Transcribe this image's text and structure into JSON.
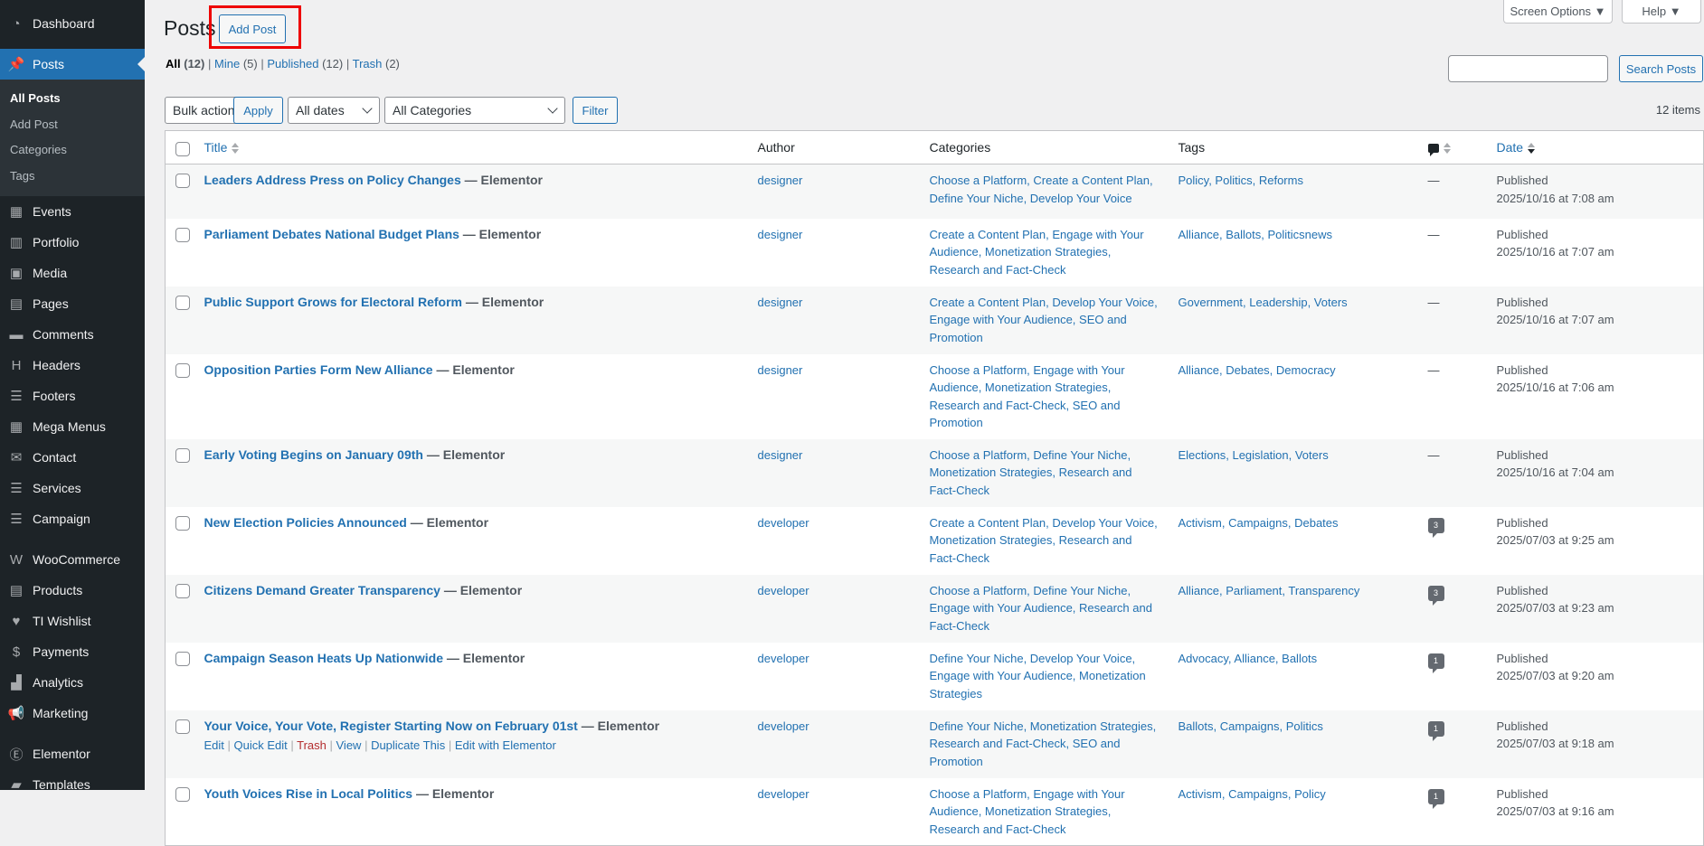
{
  "sidebar": {
    "items": [
      {
        "label": "Dashboard",
        "icon": "dashboard-icon",
        "glyph": "◔"
      },
      {
        "label": "Posts",
        "icon": "pushpin-icon",
        "glyph": "📌",
        "current": true
      },
      {
        "label": "Events",
        "icon": "calendar-icon",
        "glyph": "▦"
      },
      {
        "label": "Portfolio",
        "icon": "portfolio-icon",
        "glyph": "▥"
      },
      {
        "label": "Media",
        "icon": "media-icon",
        "glyph": "▣"
      },
      {
        "label": "Pages",
        "icon": "pages-icon",
        "glyph": "▤"
      },
      {
        "label": "Comments",
        "icon": "comments-icon",
        "glyph": "▬"
      },
      {
        "label": "Headers",
        "icon": "headers-icon",
        "glyph": "H"
      },
      {
        "label": "Footers",
        "icon": "footers-icon",
        "glyph": "☰"
      },
      {
        "label": "Mega Menus",
        "icon": "mega-menus-icon",
        "glyph": "▦"
      },
      {
        "label": "Contact",
        "icon": "envelope-icon",
        "glyph": "✉"
      },
      {
        "label": "Services",
        "icon": "services-icon",
        "glyph": "☰"
      },
      {
        "label": "Campaign",
        "icon": "campaign-icon",
        "glyph": "☰"
      },
      {
        "label": "WooCommerce",
        "icon": "woocommerce-icon",
        "glyph": "W"
      },
      {
        "label": "Products",
        "icon": "archive-icon",
        "glyph": "▤"
      },
      {
        "label": "TI Wishlist",
        "icon": "heart-icon",
        "glyph": "♥"
      },
      {
        "label": "Payments",
        "icon": "dollar-icon",
        "glyph": "$"
      },
      {
        "label": "Analytics",
        "icon": "bar-chart-icon",
        "glyph": "▟"
      },
      {
        "label": "Marketing",
        "icon": "megaphone-icon",
        "glyph": "📢"
      },
      {
        "label": "Elementor",
        "icon": "elementor-icon",
        "glyph": "Ⓔ"
      },
      {
        "label": "Templates",
        "icon": "folder-icon",
        "glyph": "▰"
      }
    ],
    "submenu": [
      "All Posts",
      "Add Post",
      "Categories",
      "Tags"
    ]
  },
  "header": {
    "title": "Posts",
    "add_post": "Add Post",
    "screen_options": "Screen Options ▼",
    "help": "Help ▼"
  },
  "views": [
    {
      "label": "All",
      "count": "(12)",
      "current": true
    },
    {
      "label": "Mine",
      "count": "(5)"
    },
    {
      "label": "Published",
      "count": "(12)"
    },
    {
      "label": "Trash",
      "count": "(2)"
    }
  ],
  "search": {
    "value": "",
    "button": "Search Posts"
  },
  "filters": {
    "bulk": "Bulk actions",
    "apply": "Apply",
    "dates": "All dates",
    "categories": "All Categories",
    "filter": "Filter",
    "items": "12 items"
  },
  "columns": {
    "title": "Title",
    "author": "Author",
    "categories": "Categories",
    "tags": "Tags",
    "date": "Date"
  },
  "rows": [
    {
      "title": "Leaders Address Press on Policy Changes",
      "state": "— Elementor",
      "author": "designer",
      "categories": "Choose a Platform, Create a Content Plan, Define Your Niche, Develop Your Voice",
      "tags": "Policy, Politics, Reforms",
      "comments": "—",
      "status": "Published",
      "date": "2025/10/16 at 7:08 am"
    },
    {
      "title": "Parliament Debates National Budget Plans",
      "state": "— Elementor",
      "author": "designer",
      "categories": "Create a Content Plan, Engage with Your Audience, Monetization Strategies, Research and Fact-Check",
      "tags": "Alliance, Ballots, Politicsnews",
      "comments": "—",
      "status": "Published",
      "date": "2025/10/16 at 7:07 am"
    },
    {
      "title": "Public Support Grows for Electoral Reform",
      "state": "— Elementor",
      "author": "designer",
      "categories": "Create a Content Plan, Develop Your Voice, Engage with Your Audience, SEO and Promotion",
      "tags": "Government, Leadership, Voters",
      "comments": "—",
      "status": "Published",
      "date": "2025/10/16 at 7:07 am"
    },
    {
      "title": "Opposition Parties Form New Alliance",
      "state": "— Elementor",
      "author": "designer",
      "categories": "Choose a Platform, Engage with Your Audience, Monetization Strategies, Research and Fact-Check, SEO and Promotion",
      "tags": "Alliance, Debates, Democracy",
      "comments": "—",
      "status": "Published",
      "date": "2025/10/16 at 7:06 am"
    },
    {
      "title": "Early Voting Begins on January 09th",
      "state": "— Elementor",
      "author": "designer",
      "categories": "Choose a Platform, Define Your Niche, Monetization Strategies, Research and Fact-Check",
      "tags": "Elections, Legislation, Voters",
      "comments": "—",
      "status": "Published",
      "date": "2025/10/16 at 7:04 am"
    },
    {
      "title": "New Election Policies Announced",
      "state": "— Elementor",
      "author": "developer",
      "categories": "Create a Content Plan, Develop Your Voice, Monetization Strategies, Research and Fact-Check",
      "tags": "Activism, Campaigns, Debates",
      "comments": 3,
      "status": "Published",
      "date": "2025/07/03 at 9:25 am"
    },
    {
      "title": "Citizens Demand Greater Transparency",
      "state": "— Elementor",
      "author": "developer",
      "categories": "Choose a Platform, Define Your Niche, Engage with Your Audience, Research and Fact-Check",
      "tags": "Alliance, Parliament, Transparency",
      "comments": 3,
      "status": "Published",
      "date": "2025/07/03 at 9:23 am"
    },
    {
      "title": "Campaign Season Heats Up Nationwide",
      "state": "— Elementor",
      "author": "developer",
      "categories": "Define Your Niche, Develop Your Voice, Engage with Your Audience, Monetization Strategies",
      "tags": "Advocacy, Alliance, Ballots",
      "comments": 1,
      "status": "Published",
      "date": "2025/07/03 at 9:20 am"
    },
    {
      "title": "Your Voice, Your Vote, Register Starting Now on February 01st",
      "state": "— Elementor",
      "author": "developer",
      "categories": "Define Your Niche, Monetization Strategies, Research and Fact-Check, SEO and Promotion",
      "tags": "Ballots, Campaigns, Politics",
      "comments": 1,
      "status": "Published",
      "date": "2025/07/03 at 9:18 am",
      "actions": [
        "Edit",
        "Quick Edit",
        "Trash",
        "View",
        "Duplicate This",
        "Edit with Elementor"
      ]
    },
    {
      "title": "Youth Voices Rise in Local Politics",
      "state": "— Elementor",
      "author": "developer",
      "categories": "Choose a Platform, Engage with Your Audience, Monetization Strategies, Research and Fact-Check",
      "tags": "Activism, Campaigns, Policy",
      "comments": 1,
      "status": "Published",
      "date": "2025/07/03 at 9:16 am"
    }
  ],
  "colors": {
    "accent": "#2271b1",
    "sidebar": "#1d2327",
    "highlight": "#e00000",
    "trash": "#b32d2e"
  }
}
